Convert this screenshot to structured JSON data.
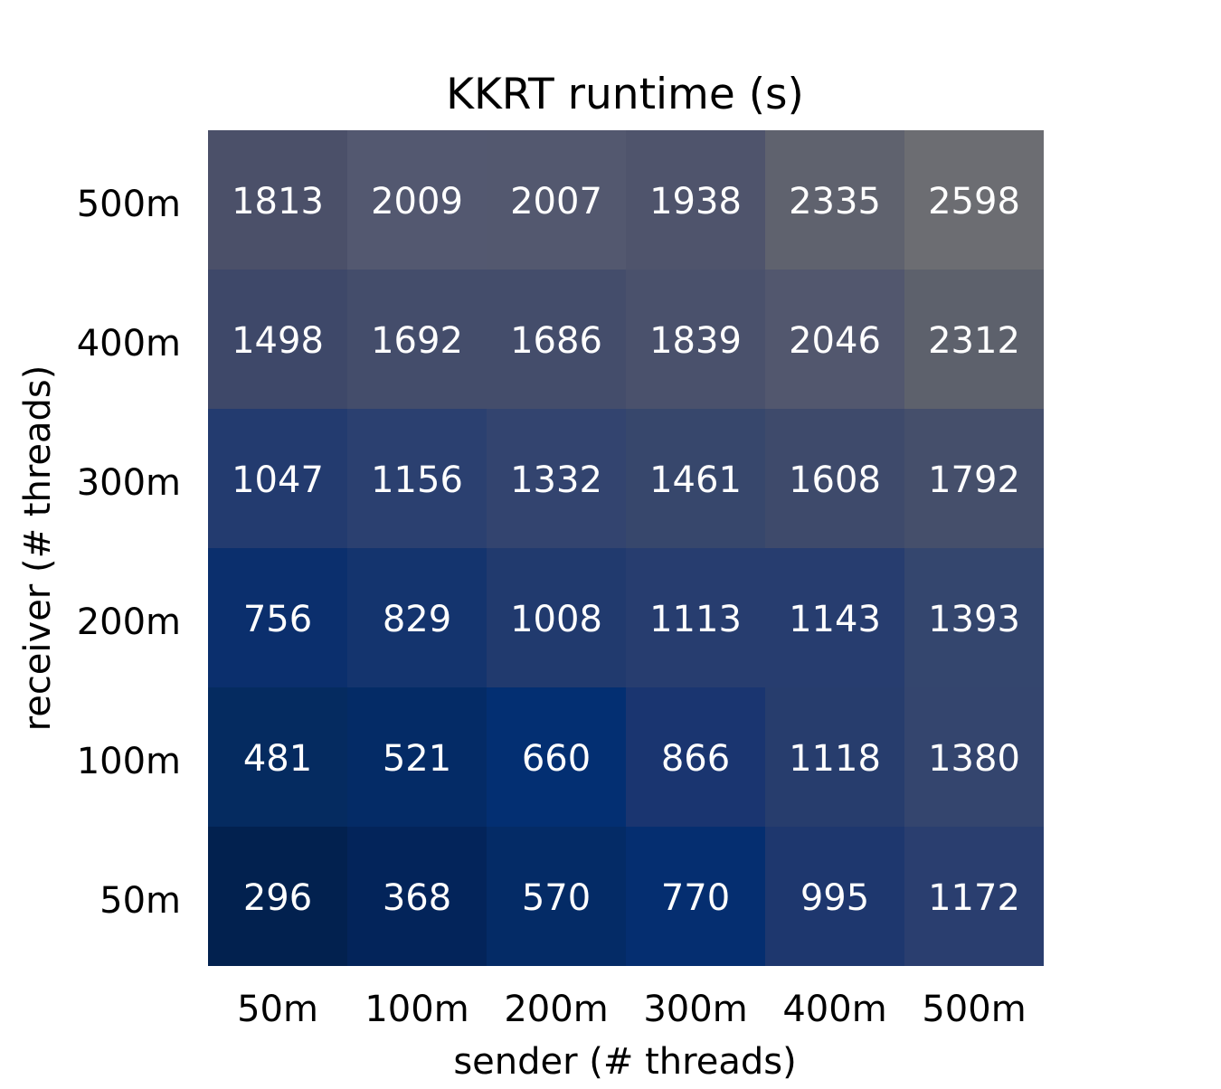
{
  "chart_data": {
    "type": "heatmap",
    "title": "KKRT runtime (s)",
    "xlabel": "sender (# threads)",
    "ylabel": "receiver (# threads)",
    "x_categories": [
      "50m",
      "100m",
      "200m",
      "300m",
      "400m",
      "500m"
    ],
    "y_categories": [
      "500m",
      "400m",
      "300m",
      "200m",
      "100m",
      "50m"
    ],
    "values": [
      [
        1813,
        2009,
        2007,
        1938,
        2335,
        2598
      ],
      [
        1498,
        1692,
        1686,
        1839,
        2046,
        2312
      ],
      [
        1047,
        1156,
        1332,
        1461,
        1608,
        1792
      ],
      [
        756,
        829,
        1008,
        1113,
        1143,
        1393
      ],
      [
        481,
        521,
        660,
        866,
        1118,
        1380
      ],
      [
        296,
        368,
        570,
        770,
        995,
        1172
      ]
    ],
    "colors": [
      [
        "#4b5069",
        "#535870",
        "#53586f",
        "#4f546c",
        "#5f626e",
        "#6c6d72"
      ],
      [
        "#3e4869",
        "#444d6b",
        "#444d6b",
        "#4a516c",
        "#52576e",
        "#5d616c"
      ],
      [
        "#233b6f",
        "#2b4070",
        "#33446f",
        "#37476c",
        "#3e4a6b",
        "#454f6b"
      ],
      [
        "#0b2f6d",
        "#14346e",
        "#213a6e",
        "#273d6f",
        "#273d6f",
        "#34466e"
      ],
      [
        "#052b60",
        "#042b66",
        "#032f72",
        "#1a3570",
        "#273d6d",
        "#34456e"
      ],
      [
        "#02214f",
        "#03245a",
        "#042b66",
        "#052e70",
        "#1e376e",
        "#2a3e6f"
      ]
    ],
    "value_text_color": "#ffffff",
    "grid": false,
    "legend": "none"
  }
}
